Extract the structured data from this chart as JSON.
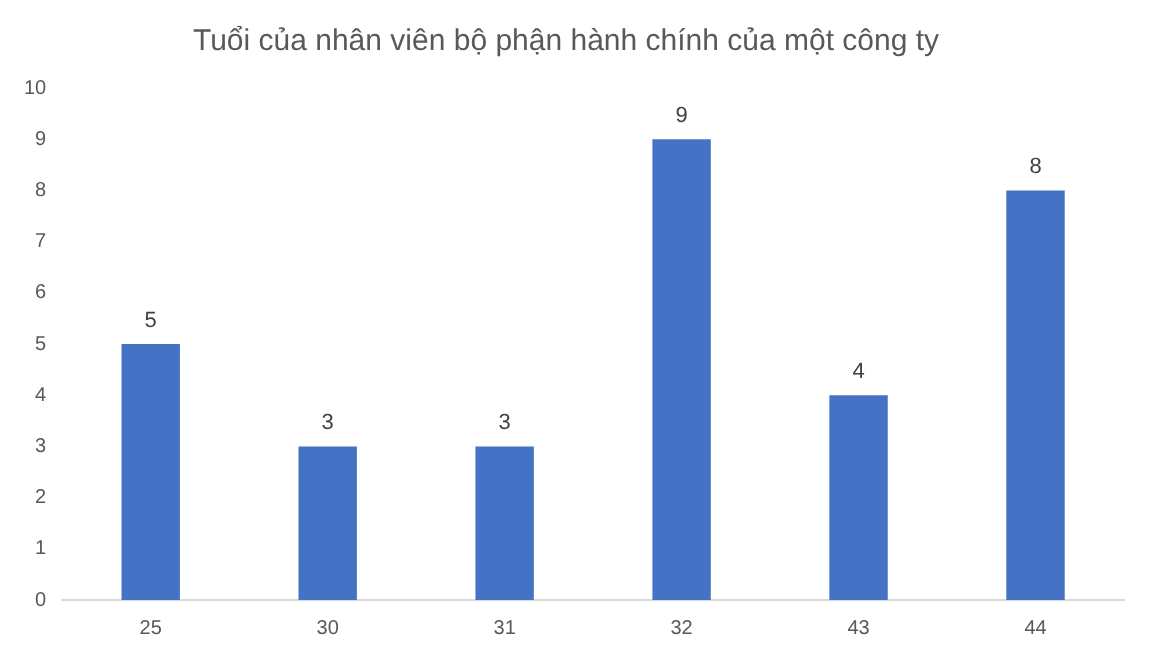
{
  "chart_data": {
    "type": "bar",
    "title": "Tuổi của nhân viên bộ phận hành chính của một công ty",
    "categories": [
      "25",
      "30",
      "31",
      "32",
      "43",
      "44"
    ],
    "values": [
      5,
      3,
      3,
      9,
      4,
      8
    ],
    "color": "#4472c4",
    "ylim": [
      0,
      10
    ],
    "yticks": [
      0,
      1,
      2,
      3,
      4,
      5,
      6,
      7,
      8,
      9,
      10
    ],
    "grid": false,
    "data_labels": true,
    "legend": false
  }
}
